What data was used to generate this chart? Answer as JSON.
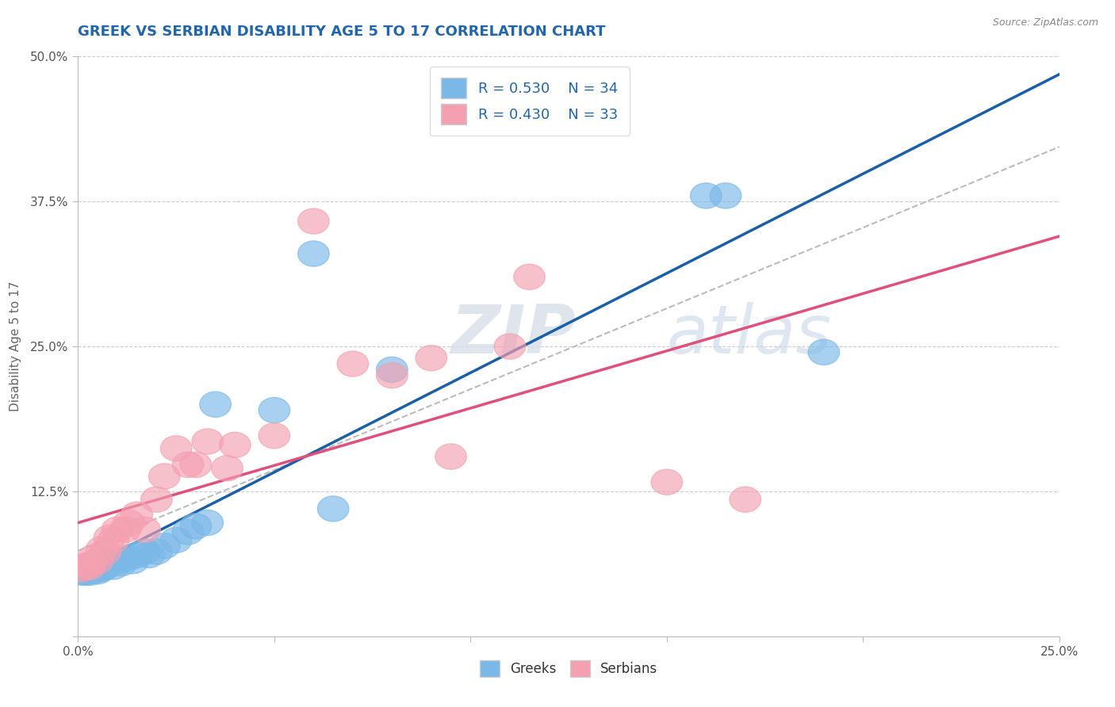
{
  "title": "GREEK VS SERBIAN DISABILITY AGE 5 TO 17 CORRELATION CHART",
  "source": "Source: ZipAtlas.com",
  "greek_R": 0.53,
  "greek_N": 34,
  "serbian_R": 0.43,
  "serbian_N": 33,
  "greek_color": "#7ab8e8",
  "serbian_color": "#f4a0b0",
  "greek_line_color": "#1a5fa8",
  "serbian_line_color": "#e0507a",
  "regression_line_color": "#bbbbbb",
  "title_color": "#2166ac",
  "xlim": [
    0.0,
    0.25
  ],
  "ylim": [
    0.0,
    0.5
  ],
  "greeks_x": [
    0.001,
    0.002,
    0.002,
    0.003,
    0.003,
    0.004,
    0.004,
    0.005,
    0.005,
    0.006,
    0.007,
    0.008,
    0.009,
    0.01,
    0.011,
    0.013,
    0.014,
    0.015,
    0.017,
    0.018,
    0.02,
    0.022,
    0.025,
    0.028,
    0.03,
    0.033,
    0.035,
    0.05,
    0.06,
    0.065,
    0.08,
    0.16,
    0.165,
    0.19
  ],
  "greeks_y": [
    0.055,
    0.06,
    0.055,
    0.058,
    0.055,
    0.06,
    0.058,
    0.058,
    0.056,
    0.058,
    0.06,
    0.063,
    0.06,
    0.065,
    0.063,
    0.068,
    0.065,
    0.07,
    0.073,
    0.07,
    0.073,
    0.078,
    0.083,
    0.09,
    0.095,
    0.098,
    0.2,
    0.195,
    0.33,
    0.11,
    0.23,
    0.38,
    0.38,
    0.245
  ],
  "serbians_x": [
    0.001,
    0.002,
    0.003,
    0.003,
    0.004,
    0.005,
    0.006,
    0.007,
    0.008,
    0.009,
    0.01,
    0.012,
    0.013,
    0.015,
    0.017,
    0.02,
    0.022,
    0.025,
    0.028,
    0.03,
    0.033,
    0.038,
    0.04,
    0.05,
    0.06,
    0.07,
    0.08,
    0.09,
    0.095,
    0.11,
    0.115,
    0.15,
    0.17
  ],
  "serbians_y": [
    0.058,
    0.06,
    0.062,
    0.06,
    0.068,
    0.065,
    0.075,
    0.073,
    0.085,
    0.083,
    0.092,
    0.092,
    0.098,
    0.105,
    0.092,
    0.118,
    0.138,
    0.162,
    0.148,
    0.148,
    0.168,
    0.145,
    0.165,
    0.173,
    0.358,
    0.235,
    0.225,
    0.24,
    0.155,
    0.25,
    0.31,
    0.133,
    0.118
  ],
  "watermark_zip": "ZIP",
  "watermark_atlas": "atlas"
}
